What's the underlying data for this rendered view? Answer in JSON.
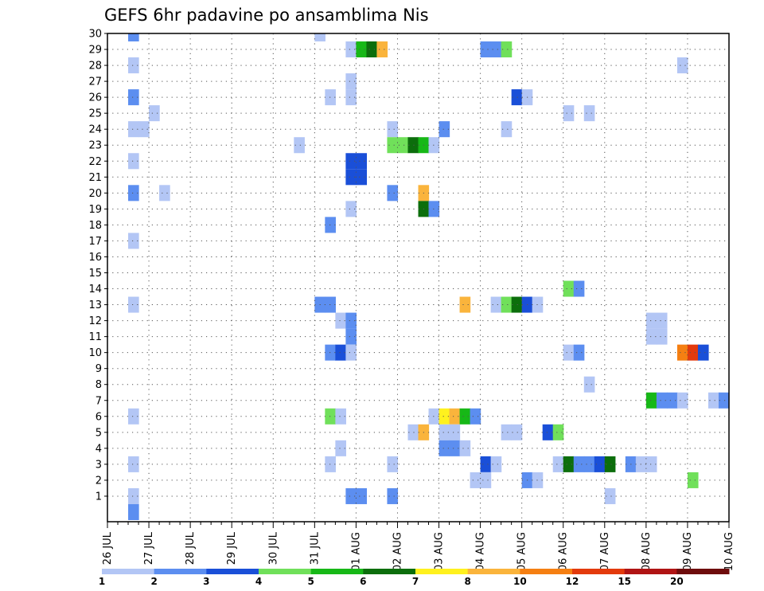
{
  "chart_data": {
    "type": "heatmap",
    "title": "GEFS 6hr padavine po ansamblima Nis",
    "x_tick_labels": [
      "26 JUL",
      "27 JUL",
      "28 JUL",
      "29 JUL",
      "30 JUL",
      "31 JUL",
      "01 AUG",
      "02 AUG",
      "03 AUG",
      "04 AUG",
      "05 AUG",
      "06 AUG",
      "07 AUG",
      "08 AUG",
      "09 AUG",
      "10 AUG"
    ],
    "y_tick_labels": [
      "1",
      "2",
      "3",
      "4",
      "5",
      "6",
      "7",
      "8",
      "9",
      "10",
      "11",
      "12",
      "13",
      "14",
      "15",
      "16",
      "17",
      "18",
      "19",
      "20",
      "21",
      "22",
      "23",
      "24",
      "25",
      "26",
      "27",
      "28",
      "29",
      "30"
    ],
    "x_unit": "6-hour step from 26 JUL 00Z (4 steps per day)",
    "y_unit": "ensemble member",
    "xlim": [
      0,
      60
    ],
    "ylim": [
      0,
      30
    ],
    "grid": true,
    "colorbar": {
      "labels": [
        "1",
        "2",
        "3",
        "4",
        "5",
        "6",
        "7",
        "8",
        "10",
        "12",
        "15",
        "20"
      ],
      "colors": [
        "#b3c6f5",
        "#5c8ef0",
        "#1a4fd8",
        "#70e05a",
        "#17b817",
        "#0c6e0c",
        "#fff11e",
        "#fab43c",
        "#f57f12",
        "#e33a0c",
        "#b01414",
        "#6e0c0c"
      ]
    },
    "cells": [
      {
        "m": 30,
        "s": 2,
        "c": 1
      },
      {
        "m": 30,
        "s": 20,
        "c": 0
      },
      {
        "m": 29,
        "s": 23,
        "c": 0
      },
      {
        "m": 29,
        "s": 24,
        "c": 4
      },
      {
        "m": 29,
        "s": 25,
        "c": 5
      },
      {
        "m": 29,
        "s": 26,
        "c": 7
      },
      {
        "m": 29,
        "s": 36,
        "c": 1
      },
      {
        "m": 29,
        "s": 37,
        "c": 1
      },
      {
        "m": 29,
        "s": 38,
        "c": 3
      },
      {
        "m": 28,
        "s": 2,
        "c": 0
      },
      {
        "m": 28,
        "s": 55,
        "c": 0
      },
      {
        "m": 27,
        "s": 23,
        "c": 0
      },
      {
        "m": 26,
        "s": 2,
        "c": 1
      },
      {
        "m": 26,
        "s": 21,
        "c": 0
      },
      {
        "m": 26,
        "s": 23,
        "c": 0
      },
      {
        "m": 26,
        "s": 39,
        "c": 2
      },
      {
        "m": 26,
        "s": 40,
        "c": 0
      },
      {
        "m": 25,
        "s": 4,
        "c": 0
      },
      {
        "m": 25,
        "s": 44,
        "c": 0
      },
      {
        "m": 25,
        "s": 46,
        "c": 0
      },
      {
        "m": 24,
        "s": 2,
        "c": 0
      },
      {
        "m": 24,
        "s": 3,
        "c": 0
      },
      {
        "m": 24,
        "s": 27,
        "c": 0
      },
      {
        "m": 24,
        "s": 32,
        "c": 1
      },
      {
        "m": 24,
        "s": 38,
        "c": 0
      },
      {
        "m": 23,
        "s": 18,
        "c": 0
      },
      {
        "m": 23,
        "s": 27,
        "c": 3
      },
      {
        "m": 23,
        "s": 28,
        "c": 3
      },
      {
        "m": 23,
        "s": 29,
        "c": 5
      },
      {
        "m": 23,
        "s": 30,
        "c": 4
      },
      {
        "m": 23,
        "s": 31,
        "c": 0
      },
      {
        "m": 22,
        "s": 2,
        "c": 0
      },
      {
        "m": 22,
        "s": 23,
        "c": 2
      },
      {
        "m": 22,
        "s": 24,
        "c": 2
      },
      {
        "m": 21,
        "s": 23,
        "c": 2
      },
      {
        "m": 21,
        "s": 24,
        "c": 2
      },
      {
        "m": 20,
        "s": 2,
        "c": 1
      },
      {
        "m": 20,
        "s": 5,
        "c": 0
      },
      {
        "m": 20,
        "s": 27,
        "c": 1
      },
      {
        "m": 20,
        "s": 30,
        "c": 7
      },
      {
        "m": 19,
        "s": 23,
        "c": 0
      },
      {
        "m": 19,
        "s": 30,
        "c": 5
      },
      {
        "m": 19,
        "s": 31,
        "c": 1
      },
      {
        "m": 18,
        "s": 21,
        "c": 1
      },
      {
        "m": 17,
        "s": 2,
        "c": 0
      },
      {
        "m": 14,
        "s": 44,
        "c": 3
      },
      {
        "m": 14,
        "s": 45,
        "c": 1
      },
      {
        "m": 13,
        "s": 2,
        "c": 0
      },
      {
        "m": 13,
        "s": 20,
        "c": 1
      },
      {
        "m": 13,
        "s": 21,
        "c": 1
      },
      {
        "m": 13,
        "s": 34,
        "c": 7
      },
      {
        "m": 13,
        "s": 37,
        "c": 0
      },
      {
        "m": 13,
        "s": 38,
        "c": 3
      },
      {
        "m": 13,
        "s": 39,
        "c": 5
      },
      {
        "m": 13,
        "s": 40,
        "c": 2
      },
      {
        "m": 13,
        "s": 41,
        "c": 0
      },
      {
        "m": 12,
        "s": 22,
        "c": 0
      },
      {
        "m": 12,
        "s": 23,
        "c": 1
      },
      {
        "m": 12,
        "s": 52,
        "c": 0
      },
      {
        "m": 12,
        "s": 53,
        "c": 0
      },
      {
        "m": 11,
        "s": 23,
        "c": 1
      },
      {
        "m": 11,
        "s": 52,
        "c": 0
      },
      {
        "m": 11,
        "s": 53,
        "c": 0
      },
      {
        "m": 10,
        "s": 21,
        "c": 1
      },
      {
        "m": 10,
        "s": 22,
        "c": 2
      },
      {
        "m": 10,
        "s": 23,
        "c": 0
      },
      {
        "m": 10,
        "s": 44,
        "c": 0
      },
      {
        "m": 10,
        "s": 45,
        "c": 1
      },
      {
        "m": 10,
        "s": 55,
        "c": 8
      },
      {
        "m": 10,
        "s": 56,
        "c": 9
      },
      {
        "m": 10,
        "s": 57,
        "c": 2
      },
      {
        "m": 8,
        "s": 46,
        "c": 0
      },
      {
        "m": 7,
        "s": 52,
        "c": 4
      },
      {
        "m": 7,
        "s": 53,
        "c": 1
      },
      {
        "m": 7,
        "s": 54,
        "c": 1
      },
      {
        "m": 7,
        "s": 55,
        "c": 0
      },
      {
        "m": 7,
        "s": 58,
        "c": 0
      },
      {
        "m": 7,
        "s": 59,
        "c": 1
      },
      {
        "m": 6,
        "s": 2,
        "c": 0
      },
      {
        "m": 6,
        "s": 21,
        "c": 3
      },
      {
        "m": 6,
        "s": 22,
        "c": 0
      },
      {
        "m": 6,
        "s": 31,
        "c": 0
      },
      {
        "m": 6,
        "s": 32,
        "c": 6
      },
      {
        "m": 6,
        "s": 33,
        "c": 7
      },
      {
        "m": 6,
        "s": 34,
        "c": 4
      },
      {
        "m": 6,
        "s": 35,
        "c": 1
      },
      {
        "m": 5,
        "s": 29,
        "c": 0
      },
      {
        "m": 5,
        "s": 30,
        "c": 7
      },
      {
        "m": 5,
        "s": 32,
        "c": 0
      },
      {
        "m": 5,
        "s": 33,
        "c": 0
      },
      {
        "m": 5,
        "s": 38,
        "c": 0
      },
      {
        "m": 5,
        "s": 39,
        "c": 0
      },
      {
        "m": 5,
        "s": 42,
        "c": 2
      },
      {
        "m": 5,
        "s": 43,
        "c": 3
      },
      {
        "m": 4,
        "s": 22,
        "c": 0
      },
      {
        "m": 4,
        "s": 32,
        "c": 1
      },
      {
        "m": 4,
        "s": 33,
        "c": 1
      },
      {
        "m": 4,
        "s": 34,
        "c": 0
      },
      {
        "m": 3,
        "s": 2,
        "c": 0
      },
      {
        "m": 3,
        "s": 21,
        "c": 0
      },
      {
        "m": 3,
        "s": 27,
        "c": 0
      },
      {
        "m": 3,
        "s": 36,
        "c": 2
      },
      {
        "m": 3,
        "s": 37,
        "c": 0
      },
      {
        "m": 3,
        "s": 43,
        "c": 0
      },
      {
        "m": 3,
        "s": 44,
        "c": 5
      },
      {
        "m": 3,
        "s": 45,
        "c": 1
      },
      {
        "m": 3,
        "s": 46,
        "c": 1
      },
      {
        "m": 3,
        "s": 47,
        "c": 2
      },
      {
        "m": 3,
        "s": 48,
        "c": 5
      },
      {
        "m": 3,
        "s": 50,
        "c": 1
      },
      {
        "m": 3,
        "s": 51,
        "c": 0
      },
      {
        "m": 3,
        "s": 52,
        "c": 0
      },
      {
        "m": 2,
        "s": 35,
        "c": 0
      },
      {
        "m": 2,
        "s": 36,
        "c": 0
      },
      {
        "m": 2,
        "s": 40,
        "c": 1
      },
      {
        "m": 2,
        "s": 41,
        "c": 0
      },
      {
        "m": 2,
        "s": 56,
        "c": 3
      },
      {
        "m": 1,
        "s": 2,
        "c": 0
      },
      {
        "m": 1,
        "s": 23,
        "c": 1
      },
      {
        "m": 1,
        "s": 24,
        "c": 1
      },
      {
        "m": 1,
        "s": 27,
        "c": 1
      },
      {
        "m": 1,
        "s": 48,
        "c": 0
      },
      {
        "m": 0,
        "s": 2,
        "c": 1
      }
    ]
  }
}
